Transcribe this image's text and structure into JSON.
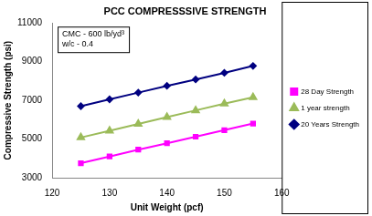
{
  "chart_data": {
    "type": "line",
    "title": "PCC COMPRESSSIVE STRENGTH",
    "x_label": "Unit Weight (pcf)",
    "y_label": "Compressive Strength (psi)",
    "annotations": [
      "CMC - 600 lb/yd³",
      "w/c - 0.4"
    ],
    "x": [
      125,
      130,
      135,
      140,
      145,
      150,
      155
    ],
    "series": [
      {
        "name": "28 Day Strength",
        "color": "#ff00ff",
        "marker": "square",
        "values": [
          3750,
          4100,
          4450,
          4780,
          5120,
          5460,
          5800
        ]
      },
      {
        "name": "1 year strength",
        "color": "#9bbb59",
        "marker": "triangle",
        "values": [
          5080,
          5430,
          5780,
          6130,
          6480,
          6830,
          7160
        ]
      },
      {
        "name": "20 Years Strength",
        "color": "#000080",
        "marker": "diamond",
        "values": [
          6700,
          7050,
          7400,
          7750,
          8080,
          8420,
          8780
        ]
      }
    ],
    "xlim": [
      120,
      160
    ],
    "xticks": [
      120,
      130,
      140,
      150,
      160
    ],
    "ylim": [
      3000,
      11000
    ],
    "yticks": [
      3000,
      5000,
      7000,
      9000,
      11000
    ],
    "grid": false,
    "legend": "right"
  }
}
